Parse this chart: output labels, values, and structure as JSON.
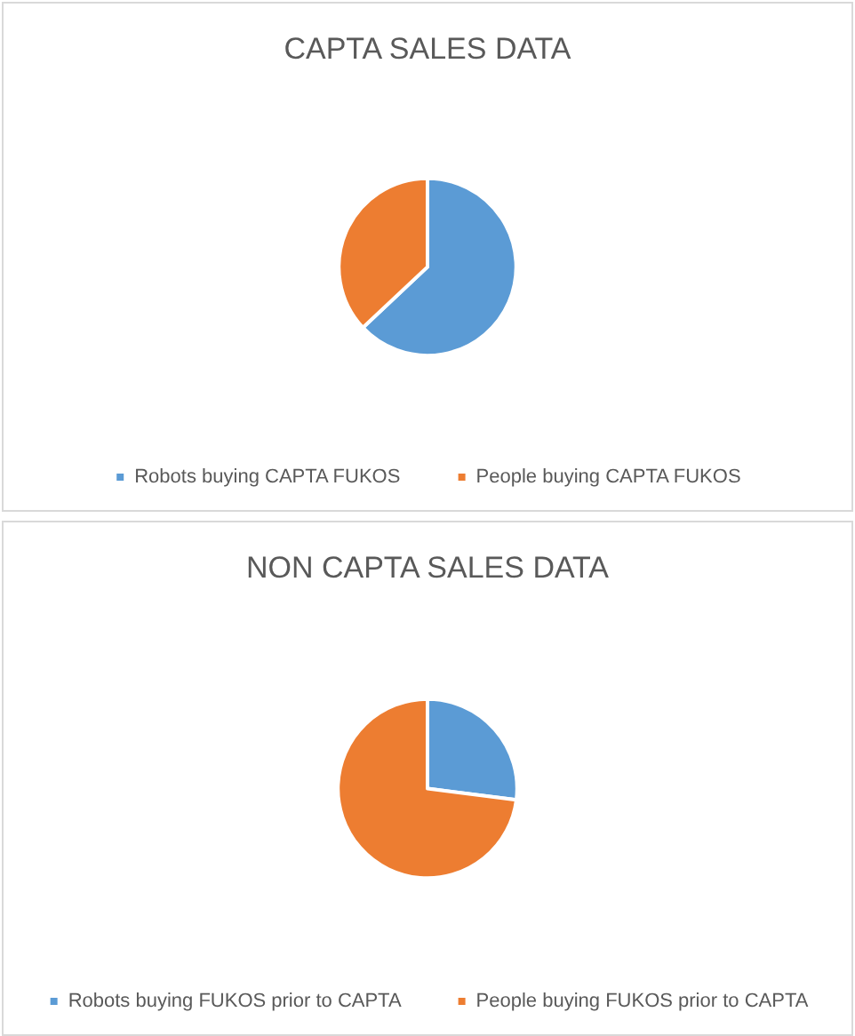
{
  "chart_data": [
    {
      "type": "pie",
      "title": "CAPTA SALES DATA",
      "categories": [
        "Robots buying CAPTA FUKOS",
        "People buying CAPTA FUKOS"
      ],
      "values": [
        63,
        37
      ],
      "colors": [
        "#5b9bd5",
        "#ed7d31"
      ],
      "legend": "bottom"
    },
    {
      "type": "pie",
      "title": "NON CAPTA SALES DATA",
      "categories": [
        "Robots buying FUKOS prior to CAPTA",
        "People buying FUKOS prior to CAPTA"
      ],
      "values": [
        27,
        73
      ],
      "colors": [
        "#5b9bd5",
        "#ed7d31"
      ],
      "legend": "bottom"
    }
  ]
}
